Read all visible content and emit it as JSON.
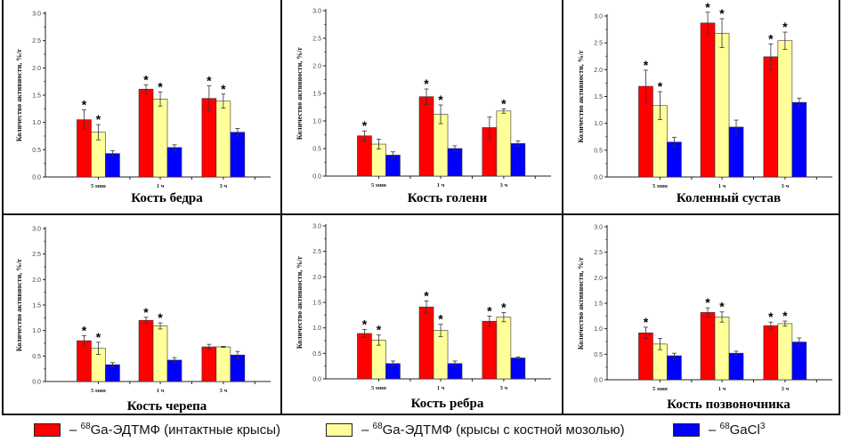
{
  "colors": {
    "intact": "#ff0000",
    "callus": "#ffff99",
    "gacl": "#0000ff"
  },
  "legend": [
    {
      "key": "intact",
      "dash": "– ",
      "sup": "68",
      "text": "Ga-ЭДТМФ (интактные крысы)",
      "sup2": ""
    },
    {
      "key": "callus",
      "dash": "– ",
      "sup": "68",
      "text": "Ga-ЭДТМФ (крысы с костной мозолью)",
      "sup2": ""
    },
    {
      "key": "gacl",
      "dash": "– ",
      "sup": "68",
      "text": "GaCl",
      "sup2": "3"
    }
  ],
  "chart_data": [
    {
      "type": "bar",
      "title": "Кость бедра",
      "xlabel": "",
      "ylabel": "Количество активности, %/г",
      "ylim": [
        0,
        3.0
      ],
      "yticks": [
        "0.0",
        "0.5",
        "1.0",
        "1.5",
        "2.0",
        "2.5",
        "3.0"
      ],
      "categories": [
        "5 мин",
        "1 ч",
        "3 ч"
      ],
      "series": [
        {
          "name": "68Ga-ЭДТМФ (интактные крысы)",
          "key": "intact",
          "values": [
            1.05,
            1.61,
            1.44
          ],
          "errors": [
            0.18,
            0.08,
            0.23
          ],
          "significant": [
            true,
            true,
            true
          ]
        },
        {
          "name": "68Ga-ЭДТМФ (крысы с костной мозолью)",
          "key": "callus",
          "values": [
            0.82,
            1.43,
            1.39
          ],
          "errors": [
            0.14,
            0.13,
            0.13
          ],
          "significant": [
            true,
            true,
            true
          ]
        },
        {
          "name": "68GaCl3",
          "key": "gacl",
          "values": [
            0.43,
            0.54,
            0.82
          ],
          "errors": [
            0.05,
            0.05,
            0.07
          ],
          "significant": [
            false,
            false,
            false
          ]
        }
      ]
    },
    {
      "type": "bar",
      "title": "Кость голени",
      "xlabel": "",
      "ylabel": "Количество активности, %/г",
      "ylim": [
        0,
        3.0
      ],
      "yticks": [
        "0.0",
        "0.5",
        "1.0",
        "1.5",
        "2.0",
        "2.5",
        "3.0"
      ],
      "categories": [
        "5 мин",
        "1 ч",
        "3 ч"
      ],
      "series": [
        {
          "name": "68Ga-ЭДТМФ (интактные крысы)",
          "key": "intact",
          "values": [
            0.73,
            1.44,
            0.88
          ],
          "errors": [
            0.09,
            0.14,
            0.19
          ],
          "significant": [
            true,
            true,
            false
          ]
        },
        {
          "name": "68Ga-ЭДТМФ (крысы с костной мозолью)",
          "key": "callus",
          "values": [
            0.58,
            1.12,
            1.18
          ],
          "errors": [
            0.09,
            0.17,
            0.04
          ],
          "significant": [
            false,
            true,
            true
          ]
        },
        {
          "name": "68GaCl3",
          "key": "gacl",
          "values": [
            0.38,
            0.5,
            0.59
          ],
          "errors": [
            0.06,
            0.05,
            0.05
          ],
          "significant": [
            false,
            false,
            false
          ]
        }
      ]
    },
    {
      "type": "bar",
      "title": "Коленный сустав",
      "xlabel": "",
      "ylabel": "Количество активности, %/г",
      "ylim": [
        0,
        3.0
      ],
      "yticks": [
        "0.0",
        "0.5",
        "1.0",
        "1.5",
        "2.0",
        "2.5",
        "3.0"
      ],
      "categories": [
        "5 мин",
        "1 ч",
        "3 ч"
      ],
      "series": [
        {
          "name": "68Ga-ЭДТМФ (интактные крысы)",
          "key": "intact",
          "values": [
            1.69,
            2.87,
            2.24
          ],
          "errors": [
            0.3,
            0.2,
            0.24
          ],
          "significant": [
            true,
            true,
            true
          ]
        },
        {
          "name": "68Ga-ЭДТМФ (крысы с костной мозолью)",
          "key": "callus",
          "values": [
            1.33,
            2.68,
            2.54
          ],
          "errors": [
            0.26,
            0.27,
            0.16
          ],
          "significant": [
            true,
            true,
            true
          ]
        },
        {
          "name": "68GaCl3",
          "key": "gacl",
          "values": [
            0.65,
            0.93,
            1.39
          ],
          "errors": [
            0.09,
            0.13,
            0.08
          ],
          "significant": [
            false,
            false,
            false
          ]
        }
      ]
    },
    {
      "type": "bar",
      "title": "Кость черепа",
      "xlabel": "",
      "ylabel": "Количество активности, %/г",
      "ylim": [
        0,
        3.0
      ],
      "yticks": [
        "0.0",
        "0.5",
        "1.0",
        "1.5",
        "2.0",
        "2.5",
        "3.0"
      ],
      "categories": [
        "5 мин",
        "1 ч",
        "3 ч"
      ],
      "series": [
        {
          "name": "68Ga-ЭДТМФ (интактные крысы)",
          "key": "intact",
          "values": [
            0.8,
            1.2,
            0.68
          ],
          "errors": [
            0.1,
            0.06,
            0.05
          ],
          "significant": [
            true,
            true,
            false
          ]
        },
        {
          "name": "68Ga-ЭДТМФ (крысы с костной мозолью)",
          "key": "callus",
          "values": [
            0.65,
            1.09,
            0.68
          ],
          "errors": [
            0.12,
            0.06,
            0.01
          ],
          "significant": [
            true,
            true,
            false
          ]
        },
        {
          "name": "68GaCl3",
          "key": "gacl",
          "values": [
            0.33,
            0.42,
            0.52
          ],
          "errors": [
            0.04,
            0.05,
            0.07
          ],
          "significant": [
            false,
            false,
            false
          ]
        }
      ]
    },
    {
      "type": "bar",
      "title": "Кость ребра",
      "xlabel": "",
      "ylabel": "Количество активности, %/г",
      "ylim": [
        0,
        3.0
      ],
      "yticks": [
        "0.0",
        "0.5",
        "1.0",
        "1.5",
        "2.0",
        "2.5",
        "3.0"
      ],
      "categories": [
        "5 мин",
        "1 ч",
        "3 ч"
      ],
      "series": [
        {
          "name": "68Ga-ЭДТМФ (интактные крысы)",
          "key": "intact",
          "values": [
            0.89,
            1.41,
            1.13
          ],
          "errors": [
            0.08,
            0.12,
            0.1
          ],
          "significant": [
            true,
            true,
            true
          ]
        },
        {
          "name": "68Ga-ЭДТМФ (крысы с костной мозолью)",
          "key": "callus",
          "values": [
            0.76,
            0.95,
            1.21
          ],
          "errors": [
            0.1,
            0.12,
            0.09
          ],
          "significant": [
            true,
            true,
            true
          ]
        },
        {
          "name": "68GaCl3",
          "key": "gacl",
          "values": [
            0.3,
            0.3,
            0.41
          ],
          "errors": [
            0.05,
            0.05,
            0.02
          ],
          "significant": [
            false,
            false,
            false
          ]
        }
      ]
    },
    {
      "type": "bar",
      "title": "Кость позвоночника",
      "xlabel": "",
      "ylabel": "Количество активности, %/г",
      "ylim": [
        0,
        3.0
      ],
      "yticks": [
        "0.0",
        "0.5",
        "1.0",
        "1.5",
        "2.0",
        "2.5",
        "3.0"
      ],
      "categories": [
        "5 мин",
        "1 ч",
        "3 ч"
      ],
      "series": [
        {
          "name": "68Ga-ЭДТМФ (интактные крысы)",
          "key": "intact",
          "values": [
            0.92,
            1.32,
            1.06
          ],
          "errors": [
            0.11,
            0.09,
            0.07
          ],
          "significant": [
            true,
            true,
            true
          ]
        },
        {
          "name": "68Ga-ЭДТМФ (крысы с костной мозолью)",
          "key": "callus",
          "values": [
            0.7,
            1.23,
            1.1
          ],
          "errors": [
            0.11,
            0.1,
            0.05
          ],
          "significant": [
            false,
            true,
            true
          ]
        },
        {
          "name": "68GaCl3",
          "key": "gacl",
          "values": [
            0.47,
            0.52,
            0.74
          ],
          "errors": [
            0.05,
            0.04,
            0.08
          ],
          "significant": [
            false,
            false,
            false
          ]
        }
      ]
    }
  ]
}
